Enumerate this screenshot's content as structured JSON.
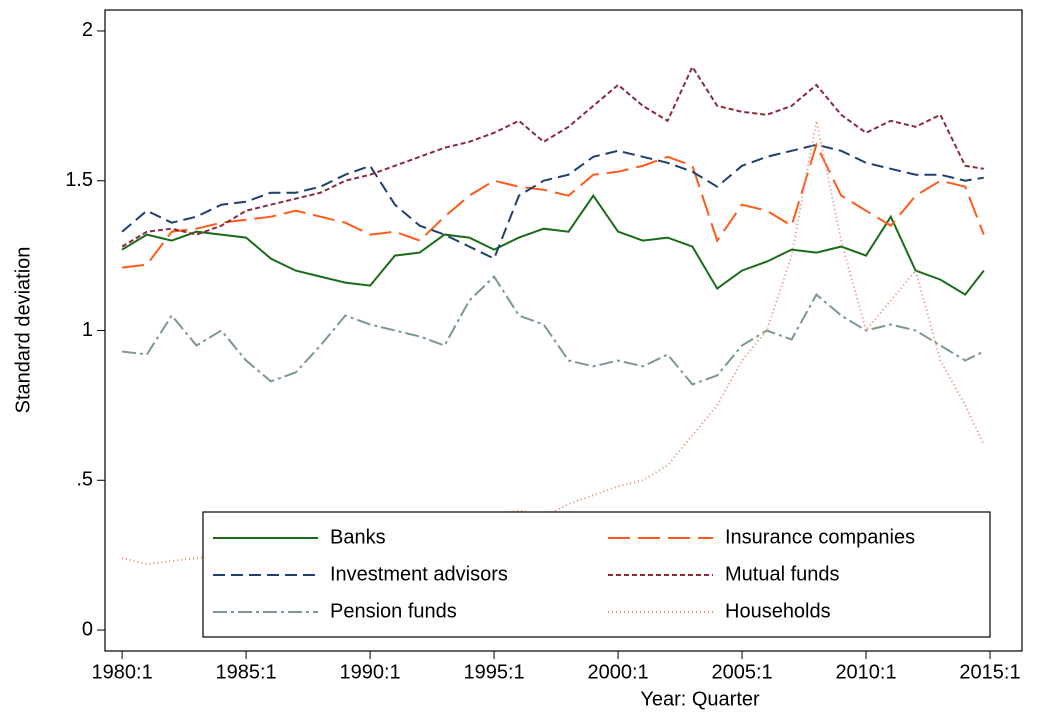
{
  "chart_data": {
    "type": "line",
    "xlabel": "Year: Quarter",
    "ylabel": "Standard deviation",
    "x": [
      1980,
      1981,
      1982,
      1983,
      1984,
      1985,
      1986,
      1987,
      1988,
      1989,
      1990,
      1991,
      1992,
      1993,
      1994,
      1995,
      1996,
      1997,
      1998,
      1999,
      2000,
      2001,
      2002,
      2003,
      2004,
      2005,
      2006,
      2007,
      2008,
      2009,
      2010,
      2011,
      2012,
      2013,
      2014,
      2014.75
    ],
    "xlim": [
      1979.31,
      2016.29
    ],
    "xticks": [
      {
        "value": 1980,
        "label": "1980:1"
      },
      {
        "value": 1985,
        "label": "1985:1"
      },
      {
        "value": 1990,
        "label": "1990:1"
      },
      {
        "value": 1995,
        "label": "1995:1"
      },
      {
        "value": 2000,
        "label": "2000:1"
      },
      {
        "value": 2005,
        "label": "2005:1"
      },
      {
        "value": 2010,
        "label": "2010:1"
      },
      {
        "value": 2015,
        "label": "2015:1"
      }
    ],
    "ylim": [
      -0.07,
      2.07
    ],
    "yticks": [
      0,
      {
        "value": 0.5,
        "label": ".5"
      },
      1,
      1.5,
      2
    ],
    "series": [
      {
        "name": "Banks",
        "color": "#1a6b1a",
        "dash": "none",
        "values": [
          1.27,
          1.32,
          1.3,
          1.33,
          1.32,
          1.31,
          1.24,
          1.2,
          1.18,
          1.16,
          1.15,
          1.25,
          1.26,
          1.32,
          1.31,
          1.27,
          1.31,
          1.34,
          1.33,
          1.45,
          1.33,
          1.3,
          1.31,
          1.28,
          1.14,
          1.2,
          1.23,
          1.27,
          1.26,
          1.28,
          1.25,
          1.38,
          1.2,
          1.17,
          1.12,
          1.2
        ]
      },
      {
        "name": "Insurance companies",
        "color": "#ff5a1a",
        "dash": "22,8",
        "values": [
          1.21,
          1.22,
          1.33,
          1.34,
          1.36,
          1.37,
          1.38,
          1.4,
          1.38,
          1.36,
          1.32,
          1.33,
          1.3,
          1.38,
          1.45,
          1.5,
          1.48,
          1.47,
          1.45,
          1.52,
          1.53,
          1.55,
          1.58,
          1.55,
          1.3,
          1.42,
          1.4,
          1.35,
          1.62,
          1.45,
          1.4,
          1.35,
          1.45,
          1.5,
          1.48,
          1.32
        ]
      },
      {
        "name": "Investment advisors",
        "color": "#1f3f6f",
        "dash": "12,6",
        "values": [
          1.33,
          1.4,
          1.36,
          1.38,
          1.42,
          1.43,
          1.46,
          1.46,
          1.48,
          1.52,
          1.55,
          1.42,
          1.35,
          1.32,
          1.28,
          1.24,
          1.45,
          1.5,
          1.52,
          1.58,
          1.6,
          1.58,
          1.56,
          1.53,
          1.48,
          1.55,
          1.58,
          1.6,
          1.62,
          1.6,
          1.56,
          1.54,
          1.52,
          1.52,
          1.5,
          1.51
        ]
      },
      {
        "name": "Mutual funds",
        "color": "#8b2a3a",
        "dash": "5,3",
        "values": [
          1.28,
          1.33,
          1.34,
          1.32,
          1.35,
          1.4,
          1.42,
          1.44,
          1.46,
          1.5,
          1.52,
          1.55,
          1.58,
          1.61,
          1.63,
          1.66,
          1.7,
          1.63,
          1.68,
          1.75,
          1.82,
          1.75,
          1.7,
          1.88,
          1.75,
          1.73,
          1.72,
          1.75,
          1.82,
          1.72,
          1.66,
          1.7,
          1.68,
          1.72,
          1.55,
          1.54
        ]
      },
      {
        "name": "Pension funds",
        "color": "#7a9a8a",
        "dash": "14,4,3,4",
        "values": [
          0.93,
          0.92,
          1.05,
          0.95,
          1.0,
          0.9,
          0.83,
          0.86,
          0.95,
          1.05,
          1.02,
          1.0,
          0.98,
          0.95,
          1.1,
          1.18,
          1.05,
          1.02,
          0.9,
          0.88,
          0.9,
          0.88,
          0.92,
          0.82,
          0.85,
          0.95,
          1.0,
          0.97,
          1.12,
          1.05,
          1.0,
          1.02,
          1.0,
          0.95,
          0.9,
          0.93
        ]
      },
      {
        "name": "Households",
        "color": "#e0906f",
        "dash": "1,3",
        "values": [
          0.24,
          0.22,
          0.23,
          0.24,
          0.25,
          0.26,
          0.27,
          0.28,
          0.29,
          0.3,
          0.31,
          0.32,
          0.33,
          0.34,
          0.36,
          0.38,
          0.4,
          0.38,
          0.42,
          0.45,
          0.48,
          0.5,
          0.55,
          0.65,
          0.75,
          0.9,
          1.0,
          1.25,
          1.7,
          1.3,
          1.0,
          1.1,
          1.2,
          0.9,
          0.75,
          0.62
        ]
      }
    ]
  }
}
